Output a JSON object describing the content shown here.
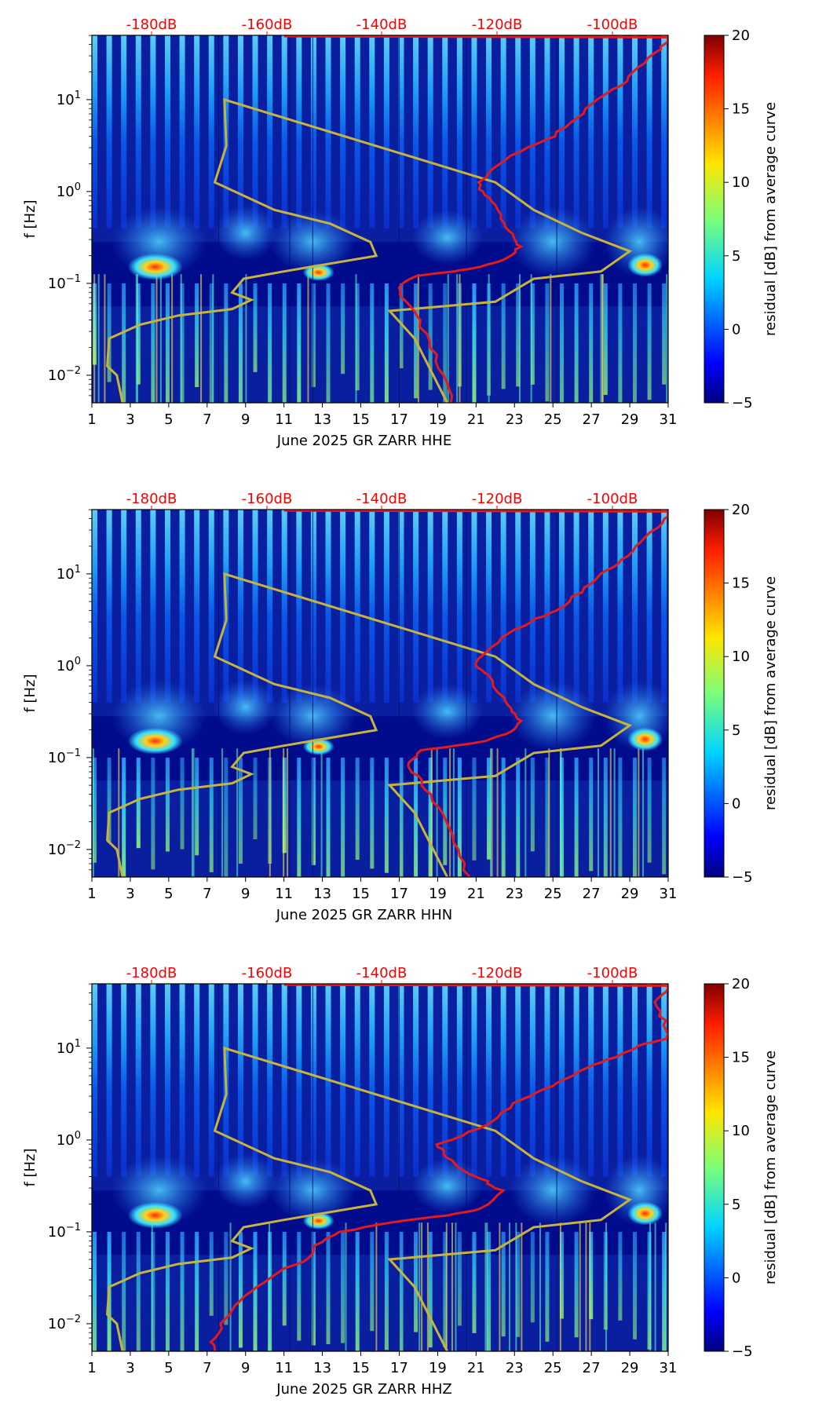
{
  "chart_data": [
    {
      "type": "heatmap",
      "component": "HHE",
      "xlabel": "June 2025 GR ZARR  HHE",
      "ylabel": "f [Hz]",
      "colorbar_label": "residual [dB] from average curve",
      "xlim": [
        1,
        31
      ],
      "ylim_log10": [
        -2.3,
        1.7
      ],
      "x_ticks": [
        "1",
        "3",
        "5",
        "7",
        "9",
        "11",
        "13",
        "15",
        "17",
        "19",
        "21",
        "23",
        "25",
        "27",
        "29",
        "31"
      ],
      "y_ticks": [
        "10^-2",
        "10^-1",
        "10^0",
        "10^1"
      ],
      "db_ticks": [
        "-180dB",
        "-160dB",
        "-140dB",
        "-120dB",
        "-100dB"
      ],
      "colorbar_ticks": [
        "20",
        "15",
        "10",
        "5",
        "0",
        "−5"
      ],
      "colorbar_range": [
        -5,
        20
      ],
      "average_curve_red": [
        [
          19.8,
          -2.3
        ],
        [
          19.3,
          -2.0
        ],
        [
          18.7,
          -1.7
        ],
        [
          18.0,
          -1.4
        ],
        [
          17.3,
          -1.2
        ],
        [
          16.9,
          -1.05
        ],
        [
          17.8,
          -0.92
        ],
        [
          19.8,
          -0.87
        ],
        [
          21.3,
          -0.82
        ],
        [
          22.6,
          -0.72
        ],
        [
          23.3,
          -0.6
        ],
        [
          22.9,
          -0.5
        ],
        [
          22.5,
          -0.35
        ],
        [
          22.0,
          -0.15
        ],
        [
          21.3,
          0.0
        ],
        [
          21.2,
          0.1
        ],
        [
          22.2,
          0.3
        ],
        [
          23.6,
          0.48
        ],
        [
          25.0,
          0.6
        ],
        [
          26.2,
          0.8
        ],
        [
          27.4,
          1.0
        ],
        [
          28.5,
          1.15
        ],
        [
          29.5,
          1.35
        ],
        [
          30.5,
          1.55
        ],
        [
          31.0,
          1.65
        ]
      ],
      "reference_curve_olive": [
        [
          2.6,
          -2.3
        ],
        [
          2.3,
          -2.0
        ],
        [
          1.8,
          -1.9
        ],
        [
          1.9,
          -1.6
        ],
        [
          3.5,
          -1.45
        ],
        [
          5.5,
          -1.35
        ],
        [
          8.3,
          -1.28
        ],
        [
          9.3,
          -1.18
        ],
        [
          8.3,
          -1.1
        ],
        [
          8.9,
          -0.95
        ],
        [
          11.0,
          -0.87
        ],
        [
          15.8,
          -0.7
        ],
        [
          15.5,
          -0.55
        ],
        [
          13.4,
          -0.35
        ],
        [
          10.5,
          -0.2
        ],
        [
          7.4,
          0.1
        ],
        [
          8.0,
          0.5
        ],
        [
          7.9,
          1.0
        ],
        [
          22.0,
          0.1
        ],
        [
          24.0,
          -0.2
        ],
        [
          26.5,
          -0.45
        ],
        [
          29.0,
          -0.65
        ],
        [
          27.5,
          -0.87
        ],
        [
          24.0,
          -0.95
        ],
        [
          22.0,
          -1.2
        ],
        [
          16.5,
          -1.3
        ],
        [
          17.8,
          -1.6
        ],
        [
          19.5,
          -2.3
        ]
      ]
    },
    {
      "type": "heatmap",
      "component": "HHN",
      "xlabel": "June 2025 GR ZARR  HHN",
      "ylabel": "f [Hz]",
      "colorbar_label": "residual [dB] from average curve",
      "xlim": [
        1,
        31
      ],
      "ylim_log10": [
        -2.3,
        1.7
      ],
      "x_ticks": [
        "1",
        "3",
        "5",
        "7",
        "9",
        "11",
        "13",
        "15",
        "17",
        "19",
        "21",
        "23",
        "25",
        "27",
        "29",
        "31"
      ],
      "y_ticks": [
        "10^-2",
        "10^-1",
        "10^0",
        "10^1"
      ],
      "db_ticks": [
        "-180dB",
        "-160dB",
        "-140dB",
        "-120dB",
        "-100dB"
      ],
      "colorbar_ticks": [
        "20",
        "15",
        "10",
        "5",
        "0",
        "−5"
      ],
      "colorbar_range": [
        -5,
        20
      ],
      "average_curve_red": [
        [
          20.6,
          -2.3
        ],
        [
          20.0,
          -2.0
        ],
        [
          19.4,
          -1.7
        ],
        [
          18.6,
          -1.4
        ],
        [
          17.9,
          -1.2
        ],
        [
          17.4,
          -1.05
        ],
        [
          18.2,
          -0.92
        ],
        [
          20.0,
          -0.87
        ],
        [
          21.6,
          -0.82
        ],
        [
          22.8,
          -0.72
        ],
        [
          23.3,
          -0.6
        ],
        [
          22.8,
          -0.5
        ],
        [
          22.4,
          -0.35
        ],
        [
          21.6,
          -0.1
        ],
        [
          21.0,
          0.0
        ],
        [
          21.3,
          0.1
        ],
        [
          22.4,
          0.3
        ],
        [
          23.8,
          0.48
        ],
        [
          25.2,
          0.6
        ],
        [
          26.4,
          0.8
        ],
        [
          27.6,
          1.0
        ],
        [
          28.6,
          1.15
        ],
        [
          29.6,
          1.35
        ],
        [
          30.6,
          1.55
        ],
        [
          31.0,
          1.65
        ]
      ],
      "reference_curve_olive": [
        [
          2.6,
          -2.3
        ],
        [
          2.3,
          -2.0
        ],
        [
          1.8,
          -1.9
        ],
        [
          1.9,
          -1.6
        ],
        [
          3.5,
          -1.45
        ],
        [
          5.5,
          -1.35
        ],
        [
          8.3,
          -1.28
        ],
        [
          9.3,
          -1.18
        ],
        [
          8.3,
          -1.1
        ],
        [
          8.9,
          -0.95
        ],
        [
          11.0,
          -0.87
        ],
        [
          15.8,
          -0.7
        ],
        [
          15.5,
          -0.55
        ],
        [
          13.4,
          -0.35
        ],
        [
          10.5,
          -0.2
        ],
        [
          7.4,
          0.1
        ],
        [
          8.0,
          0.5
        ],
        [
          7.9,
          1.0
        ],
        [
          22.0,
          0.1
        ],
        [
          24.0,
          -0.2
        ],
        [
          26.5,
          -0.45
        ],
        [
          29.0,
          -0.65
        ],
        [
          27.5,
          -0.87
        ],
        [
          24.0,
          -0.95
        ],
        [
          22.0,
          -1.2
        ],
        [
          16.5,
          -1.3
        ],
        [
          17.8,
          -1.6
        ],
        [
          19.5,
          -2.3
        ]
      ]
    },
    {
      "type": "heatmap",
      "component": "HHZ",
      "xlabel": "June 2025 GR ZARR  HHZ",
      "ylabel": "f [Hz]",
      "colorbar_label": "residual [dB] from average curve",
      "xlim": [
        1,
        31
      ],
      "ylim_log10": [
        -2.3,
        1.7
      ],
      "x_ticks": [
        "1",
        "3",
        "5",
        "7",
        "9",
        "11",
        "13",
        "15",
        "17",
        "19",
        "21",
        "23",
        "25",
        "27",
        "29",
        "31"
      ],
      "y_ticks": [
        "10^-2",
        "10^-1",
        "10^0",
        "10^1"
      ],
      "db_ticks": [
        "-180dB",
        "-160dB",
        "-140dB",
        "-120dB",
        "-100dB"
      ],
      "colorbar_ticks": [
        "20",
        "15",
        "10",
        "5",
        "0",
        "−5"
      ],
      "colorbar_range": [
        -5,
        20
      ],
      "average_curve_red": [
        [
          7.5,
          -2.3
        ],
        [
          7.3,
          -2.2
        ],
        [
          7.8,
          -2.0
        ],
        [
          8.5,
          -1.8
        ],
        [
          9.6,
          -1.6
        ],
        [
          11.0,
          -1.4
        ],
        [
          12.2,
          -1.3
        ],
        [
          12.6,
          -1.15
        ],
        [
          14.0,
          -1.0
        ],
        [
          16.5,
          -0.9
        ],
        [
          19.5,
          -0.82
        ],
        [
          21.3,
          -0.75
        ],
        [
          22.3,
          -0.55
        ],
        [
          21.5,
          -0.45
        ],
        [
          20.0,
          -0.3
        ],
        [
          19.4,
          -0.15
        ],
        [
          19.0,
          -0.05
        ],
        [
          20.3,
          0.05
        ],
        [
          21.8,
          0.2
        ],
        [
          23.0,
          0.4
        ],
        [
          24.5,
          0.55
        ],
        [
          26.0,
          0.7
        ],
        [
          27.5,
          0.85
        ],
        [
          28.8,
          0.95
        ],
        [
          29.8,
          1.05
        ],
        [
          31.0,
          1.1
        ],
        [
          30.8,
          1.3
        ],
        [
          30.2,
          1.5
        ],
        [
          31.0,
          1.65
        ]
      ],
      "reference_curve_olive": [
        [
          2.6,
          -2.3
        ],
        [
          2.3,
          -2.0
        ],
        [
          1.8,
          -1.9
        ],
        [
          1.9,
          -1.6
        ],
        [
          3.5,
          -1.45
        ],
        [
          5.5,
          -1.35
        ],
        [
          8.3,
          -1.28
        ],
        [
          9.3,
          -1.18
        ],
        [
          8.3,
          -1.1
        ],
        [
          8.9,
          -0.95
        ],
        [
          11.0,
          -0.87
        ],
        [
          15.8,
          -0.7
        ],
        [
          15.5,
          -0.55
        ],
        [
          13.4,
          -0.35
        ],
        [
          10.5,
          -0.2
        ],
        [
          7.4,
          0.1
        ],
        [
          8.0,
          0.5
        ],
        [
          7.9,
          1.0
        ],
        [
          22.0,
          0.1
        ],
        [
          24.0,
          -0.2
        ],
        [
          26.5,
          -0.45
        ],
        [
          29.0,
          -0.65
        ],
        [
          27.5,
          -0.87
        ],
        [
          24.0,
          -0.95
        ],
        [
          22.0,
          -1.2
        ],
        [
          16.5,
          -1.3
        ],
        [
          17.8,
          -1.6
        ],
        [
          19.5,
          -2.3
        ]
      ]
    }
  ],
  "colors": {
    "red_curve": "#e41a1c",
    "olive_curve": "#c8b43c",
    "db_tick_text": "#ff0000",
    "background_field": "#0a1fa0"
  }
}
